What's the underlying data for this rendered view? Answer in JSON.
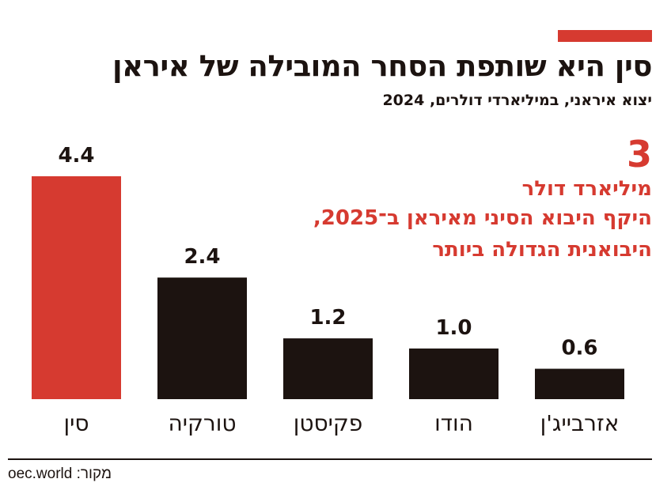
{
  "title": "סין היא שותפת הסחר המובילה של איראן",
  "subtitle": "יצוא איראני, במיליארדי דולרים, 2024",
  "callout": {
    "number": "3",
    "unit": "מיליארד דולר",
    "line1": "היקף היבוא הסיני מאיראן ב־2025,",
    "line2": "היבואנית הגדולה ביותר"
  },
  "source": "מקור: oec.world",
  "colors": {
    "accent": "#d63a30",
    "bar": "#1c1310",
    "text": "#1c1310"
  },
  "chart_data": {
    "type": "bar",
    "title": "סין היא שותפת הסחר המובילה של איראן",
    "subtitle": "יצוא איראני, במיליארדי דולרים, 2024",
    "categories": [
      "סין",
      "טורקיה",
      "פקיסטן",
      "הודו",
      "אזרבייג'ן"
    ],
    "values": [
      4.4,
      2.4,
      1.2,
      1.0,
      0.6
    ],
    "value_labels": [
      "4.4",
      "2.4",
      "1.2",
      "1.0",
      "0.6"
    ],
    "highlight_index": 0,
    "ylim": [
      0,
      4.4
    ],
    "grid": false,
    "axes_visible": false
  }
}
